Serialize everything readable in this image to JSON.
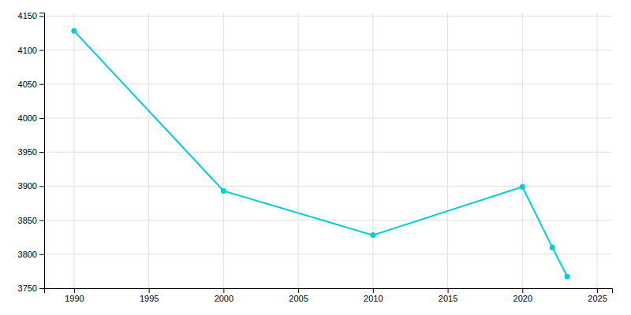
{
  "chart_data": {
    "type": "line",
    "x": [
      1990,
      2000,
      2010,
      2020,
      2022,
      2023
    ],
    "values": [
      4128,
      3893,
      3828,
      3899,
      3810,
      3767
    ],
    "color": "#00CED1",
    "marker": "circle",
    "xlim": [
      1988,
      2026
    ],
    "ylim": [
      3750,
      4155
    ],
    "xticks": [
      1990,
      1995,
      2000,
      2005,
      2010,
      2015,
      2020,
      2025
    ],
    "yticks": [
      3750,
      3800,
      3850,
      3900,
      3950,
      4000,
      4050,
      4100,
      4150
    ],
    "grid": true
  }
}
